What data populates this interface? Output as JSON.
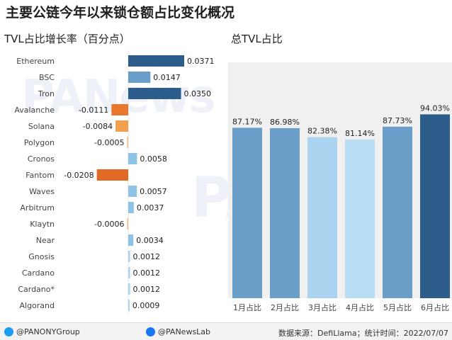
{
  "title": "主要公链今年以来锁仓额占比变化概况",
  "watermarks": [
    "PANews",
    "PAData"
  ],
  "chart_data": [
    {
      "type": "bar",
      "orientation": "horizontal",
      "title": "TVL占比增长率（百分点）",
      "categories": [
        "Ethereum",
        "BSC",
        "Tron",
        "Avalanche",
        "Solana",
        "Polygon",
        "Cronos",
        "Fantom",
        "Waves",
        "Arbitrum",
        "Klaytn",
        "Near",
        "Gnosis",
        "Cardano",
        "Cardano*",
        "Algorand"
      ],
      "values": [
        0.0371,
        0.0147,
        0.035,
        -0.0111,
        -0.0084,
        -0.0005,
        0.0058,
        -0.0208,
        0.0057,
        0.0037,
        -0.0006,
        0.0034,
        0.0012,
        0.0012,
        0.0012,
        0.0009
      ],
      "value_labels": [
        "0.0371",
        "0.0147",
        "0.0350",
        "-0.0111",
        "-0.0084",
        "-0.0005",
        "0.0058",
        "-0.0208",
        "0.0057",
        "0.0037",
        "-0.0006",
        "0.0034",
        "0.0012",
        "0.0012",
        "0.0012",
        "0.0009"
      ],
      "colors": [
        "#2b5c8a",
        "#6a9ec9",
        "#2b5c8a",
        "#e8762c",
        "#f2a04e",
        "#f4b979",
        "#8ec3e6",
        "#e06a26",
        "#8ec3e6",
        "#8ec3e6",
        "#f4b979",
        "#8ec3e6",
        "#a9d3ee",
        "#a9d3ee",
        "#a9d3ee",
        "#a9d3ee"
      ],
      "xlim": [
        -0.025,
        0.045
      ]
    },
    {
      "type": "bar",
      "title": "总TVL占比",
      "categories": [
        "1月占比",
        "2月占比",
        "3月占比",
        "4月占比",
        "5月占比",
        "6月占比"
      ],
      "values": [
        87.17,
        86.98,
        82.38,
        81.14,
        87.73,
        94.03
      ],
      "value_labels": [
        "87.17%",
        "86.98%",
        "82.38%",
        "81.14%",
        "87.73%",
        "94.03%"
      ],
      "colors": [
        "#6a9ec9",
        "#6a9ec9",
        "#a9d3ee",
        "#b8dcf2",
        "#6a9ec9",
        "#2b5c8a"
      ],
      "ylim": [
        0,
        100
      ]
    }
  ],
  "footer": {
    "twitter": "@PANONYGroup",
    "facebook": "@PANewsLab",
    "source": "数据来源：DefiLlama；统计时间：2022/07/07"
  }
}
